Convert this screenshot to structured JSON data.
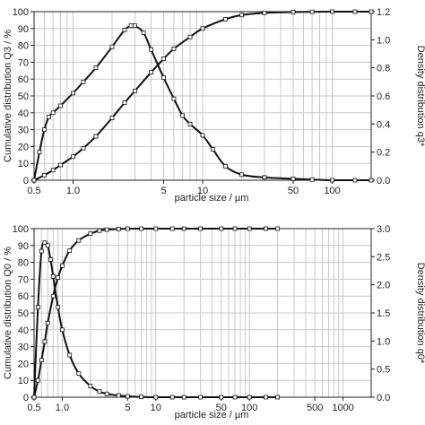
{
  "chart_data": [
    {
      "type": "line",
      "xlabel": "particle size / µm",
      "ylabel_left": "Cumulative distribution Q3 / %",
      "ylabel_right": "Density distribution q3*",
      "x_scale": "log",
      "xlim": [
        0.5,
        200
      ],
      "ylim_left": [
        0,
        100
      ],
      "ylim_right": [
        0,
        1.2
      ],
      "grid": true,
      "x_tick_labels": [
        "0.5",
        "1.0",
        "5",
        "10",
        "50",
        "100"
      ],
      "x_tick_values": [
        0.5,
        1.0,
        5,
        10,
        50,
        100
      ],
      "y_left_ticks": [
        0,
        10,
        20,
        30,
        40,
        50,
        60,
        70,
        80,
        90,
        100
      ],
      "y_right_ticks": [
        "0.0",
        "0.2",
        "0.4",
        "0.6",
        "0.8",
        "1.0",
        "1.2"
      ],
      "y_right_values": [
        0,
        0.2,
        0.4,
        0.6,
        0.8,
        1.0,
        1.2
      ],
      "series": [
        {
          "axis": "left",
          "x": [
            0.5,
            0.6,
            0.7,
            0.8,
            1.0,
            1.2,
            1.5,
            2.0,
            2.5,
            3.0,
            4.0,
            5.0,
            6.0,
            8.0,
            10,
            15,
            20,
            30,
            50,
            70,
            100,
            150,
            200
          ],
          "y": [
            0,
            3,
            6,
            9,
            14,
            19,
            26,
            37,
            46,
            53,
            64,
            72,
            78,
            85,
            90,
            95.5,
            98,
            99.3,
            99.8,
            99.9,
            100,
            100,
            100
          ]
        },
        {
          "axis": "right",
          "x": [
            0.5,
            0.55,
            0.6,
            0.65,
            0.7,
            0.8,
            1.0,
            1.2,
            1.5,
            2.0,
            2.5,
            2.8,
            3.0,
            3.5,
            4.0,
            5.0,
            6.0,
            7.0,
            8.0,
            10,
            12,
            15,
            20,
            30,
            50,
            70,
            100,
            150,
            200
          ],
          "y": [
            0,
            0.2,
            0.36,
            0.45,
            0.48,
            0.53,
            0.62,
            0.7,
            0.8,
            0.95,
            1.07,
            1.1,
            1.1,
            1.05,
            0.93,
            0.73,
            0.58,
            0.46,
            0.4,
            0.32,
            0.22,
            0.1,
            0.04,
            0.02,
            0.01,
            0.005,
            0,
            0,
            0
          ]
        }
      ]
    },
    {
      "type": "line",
      "xlabel": "particle size / µm",
      "ylabel_left": "Cumulative distribution Q0 / %",
      "ylabel_right": "Density distribution q0*",
      "x_scale": "log",
      "xlim": [
        0.5,
        2000
      ],
      "ylim_left": [
        0,
        100
      ],
      "ylim_right": [
        0,
        3.0
      ],
      "grid": true,
      "x_tick_labels": [
        "0.5",
        "1.0",
        "5",
        "10",
        "50",
        "100",
        "500",
        "1000"
      ],
      "x_tick_values": [
        0.5,
        1.0,
        5,
        10,
        50,
        100,
        500,
        1000
      ],
      "y_left_ticks": [
        0,
        10,
        20,
        30,
        40,
        50,
        60,
        70,
        80,
        90,
        100
      ],
      "y_right_ticks": [
        "0.0",
        "0.5",
        "1.0",
        "1.5",
        "2.0",
        "2.5",
        "3.0"
      ],
      "y_right_values": [
        0,
        0.5,
        1.0,
        1.5,
        2.0,
        2.5,
        3.0
      ],
      "series": [
        {
          "axis": "left",
          "x": [
            0.5,
            0.55,
            0.6,
            0.65,
            0.7,
            0.8,
            0.9,
            1.0,
            1.2,
            1.5,
            2.0,
            2.5,
            3.0,
            4.0,
            5.0,
            7.0,
            10,
            15,
            20,
            30,
            50,
            70,
            100,
            150,
            200
          ],
          "y": [
            0,
            10,
            22,
            33,
            44,
            60,
            71,
            78,
            87,
            93,
            97,
            98.8,
            99.4,
            99.8,
            100,
            100,
            100,
            100,
            100,
            100,
            100,
            100,
            100,
            100,
            100
          ]
        },
        {
          "axis": "right",
          "x": [
            0.5,
            0.55,
            0.6,
            0.65,
            0.7,
            0.75,
            0.8,
            0.9,
            1.0,
            1.2,
            1.5,
            2.0,
            2.5,
            3.0,
            4.0,
            5.0,
            7.0,
            10,
            15,
            20,
            30,
            50,
            70,
            100,
            150,
            200
          ],
          "y": [
            0,
            1.6,
            2.6,
            2.75,
            2.7,
            2.45,
            2.15,
            1.6,
            1.2,
            0.75,
            0.42,
            0.2,
            0.1,
            0.06,
            0.03,
            0.015,
            0.005,
            0,
            0,
            0,
            0,
            0,
            0,
            0,
            0,
            0
          ]
        }
      ]
    }
  ]
}
